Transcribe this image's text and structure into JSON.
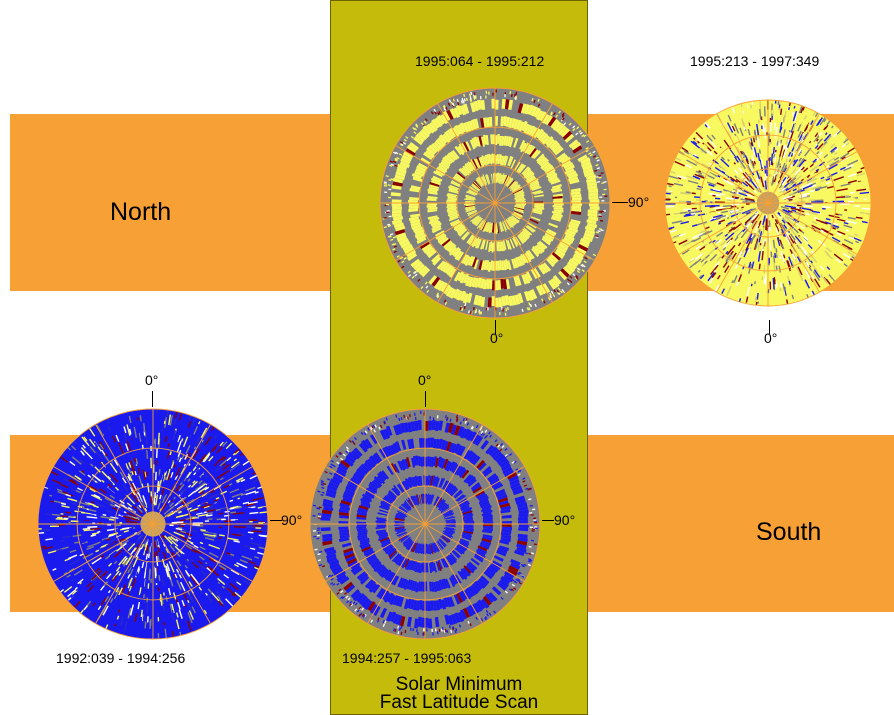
{
  "regions": {
    "north": "North",
    "south": "South"
  },
  "panel": {
    "title_line1": "Solar Minimum",
    "title_line2": "Fast Latitude Scan"
  },
  "disks": [
    {
      "id": "north-fast",
      "date_range": "1995:064 - 1995:212",
      "angle_label": "90°",
      "zero_label": "0°"
    },
    {
      "id": "north-slow",
      "date_range": "1995:213 - 1997:349",
      "zero_label": "0°"
    },
    {
      "id": "south-slow",
      "date_range": "1992:039 - 1994:256",
      "angle_label": "90°",
      "zero_label": "0°"
    },
    {
      "id": "south-fast",
      "date_range": "1994:257 - 1995:063",
      "angle_label": "90°",
      "zero_label": "0°"
    }
  ],
  "colors": {
    "band": "#f7a035",
    "panel": "#c4bb0b",
    "gray": "#808080",
    "yellow": "#f8f860",
    "blue": "#1a1aee",
    "darkred": "#8b0000",
    "grid": "#f7a035"
  }
}
